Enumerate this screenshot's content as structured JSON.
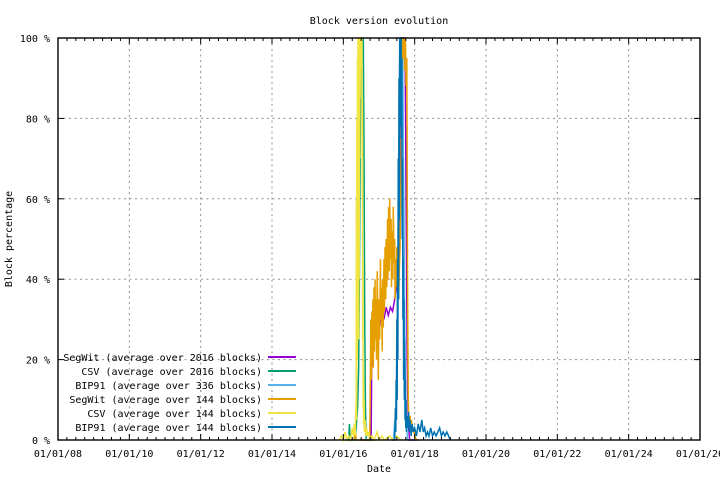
{
  "chart_data": {
    "type": "line",
    "title": "Block version evolution",
    "xlabel": "Date",
    "ylabel": "Block percentage",
    "xlim": [
      2008,
      2026
    ],
    "ylim": [
      0,
      100
    ],
    "grid": true,
    "legend_position": "bottom-left",
    "x_ticks": [
      {
        "label": "01/01/08",
        "year": 2008
      },
      {
        "label": "01/01/10",
        "year": 2010
      },
      {
        "label": "01/01/12",
        "year": 2012
      },
      {
        "label": "01/01/14",
        "year": 2014
      },
      {
        "label": "01/01/16",
        "year": 2016
      },
      {
        "label": "01/01/18",
        "year": 2018
      },
      {
        "label": "01/01/20",
        "year": 2020
      },
      {
        "label": "01/01/22",
        "year": 2022
      },
      {
        "label": "01/01/24",
        "year": 2024
      },
      {
        "label": "01/01/26",
        "year": 2026
      }
    ],
    "x_minor_tick_interval_years": 0.25,
    "y_ticks": [
      {
        "label": "0 %",
        "value": 0
      },
      {
        "label": "20 %",
        "value": 20
      },
      {
        "label": "40 %",
        "value": 40
      },
      {
        "label": "60 %",
        "value": 60
      },
      {
        "label": "80 %",
        "value": 80
      },
      {
        "label": "100 %",
        "value": 100
      }
    ],
    "grid_color": "#8f8f8f",
    "axis_color": "#000000",
    "series": [
      {
        "name": "SegWit (average over 2016 blocks)",
        "color": "#9400d3",
        "points": [
          [
            2016.5,
            0
          ],
          [
            2016.78,
            0
          ],
          [
            2016.8,
            25
          ],
          [
            2016.84,
            30
          ],
          [
            2016.9,
            27
          ],
          [
            2016.96,
            31
          ],
          [
            2017.02,
            28
          ],
          [
            2017.08,
            32
          ],
          [
            2017.14,
            30
          ],
          [
            2017.2,
            33
          ],
          [
            2017.26,
            31
          ],
          [
            2017.32,
            33
          ],
          [
            2017.38,
            32
          ],
          [
            2017.44,
            35
          ],
          [
            2017.5,
            39
          ],
          [
            2017.55,
            45
          ],
          [
            2017.6,
            65
          ],
          [
            2017.63,
            90
          ],
          [
            2017.66,
            100
          ],
          [
            2017.73,
            100
          ],
          [
            2017.76,
            60
          ],
          [
            2017.79,
            20
          ],
          [
            2017.82,
            4
          ],
          [
            2017.86,
            0
          ],
          [
            2018.05,
            0
          ]
        ]
      },
      {
        "name": "CSV (average over 2016 blocks)",
        "color": "#009e73",
        "points": [
          [
            2016.1,
            0
          ],
          [
            2016.15,
            0
          ],
          [
            2016.17,
            4
          ],
          [
            2016.19,
            0
          ],
          [
            2016.32,
            0
          ],
          [
            2016.36,
            3
          ],
          [
            2016.4,
            8
          ],
          [
            2016.43,
            18
          ],
          [
            2016.45,
            40
          ],
          [
            2016.47,
            70
          ],
          [
            2016.49,
            92
          ],
          [
            2016.51,
            100
          ],
          [
            2016.56,
            100
          ],
          [
            2016.58,
            72
          ],
          [
            2016.6,
            30
          ],
          [
            2016.62,
            8
          ],
          [
            2016.64,
            0
          ],
          [
            2016.9,
            0
          ]
        ]
      },
      {
        "name": "BIP91 (average over 336 blocks)",
        "color": "#56b4e9",
        "points": [
          [
            2017.4,
            0
          ],
          [
            2017.48,
            8
          ],
          [
            2017.52,
            35
          ],
          [
            2017.55,
            70
          ],
          [
            2017.58,
            95
          ],
          [
            2017.6,
            100
          ],
          [
            2017.66,
            100
          ],
          [
            2017.7,
            55
          ],
          [
            2017.73,
            20
          ],
          [
            2017.76,
            5
          ],
          [
            2017.8,
            0
          ],
          [
            2017.9,
            0
          ]
        ]
      },
      {
        "name": "SegWit (average over 144 blocks)",
        "color": "#e69f00",
        "points": [
          [
            2016.3,
            0
          ],
          [
            2016.33,
            3
          ],
          [
            2016.36,
            0
          ],
          [
            2016.6,
            0
          ],
          [
            2016.74,
            0
          ],
          [
            2016.76,
            18
          ],
          [
            2016.77,
            30
          ],
          [
            2016.79,
            15
          ],
          [
            2016.8,
            32
          ],
          [
            2016.81,
            20
          ],
          [
            2016.83,
            35
          ],
          [
            2016.84,
            18
          ],
          [
            2016.86,
            38
          ],
          [
            2016.87,
            22
          ],
          [
            2016.89,
            40
          ],
          [
            2016.9,
            25
          ],
          [
            2016.92,
            35
          ],
          [
            2016.93,
            20
          ],
          [
            2016.95,
            42
          ],
          [
            2016.97,
            28
          ],
          [
            2016.98,
            15
          ],
          [
            2017.0,
            35
          ],
          [
            2017.02,
            25
          ],
          [
            2017.04,
            45
          ],
          [
            2017.05,
            30
          ],
          [
            2017.07,
            38
          ],
          [
            2017.09,
            22
          ],
          [
            2017.1,
            40
          ],
          [
            2017.12,
            28
          ],
          [
            2017.14,
            45
          ],
          [
            2017.15,
            32
          ],
          [
            2017.17,
            48
          ],
          [
            2017.19,
            35
          ],
          [
            2017.2,
            50
          ],
          [
            2017.22,
            38
          ],
          [
            2017.24,
            55
          ],
          [
            2017.25,
            40
          ],
          [
            2017.27,
            58
          ],
          [
            2017.29,
            42
          ],
          [
            2017.3,
            60
          ],
          [
            2017.32,
            45
          ],
          [
            2017.34,
            55
          ],
          [
            2017.35,
            38
          ],
          [
            2017.37,
            52
          ],
          [
            2017.39,
            40
          ],
          [
            2017.4,
            58
          ],
          [
            2017.42,
            44
          ],
          [
            2017.44,
            50
          ],
          [
            2017.45,
            35
          ],
          [
            2017.47,
            45
          ],
          [
            2017.49,
            38
          ],
          [
            2017.5,
            48
          ],
          [
            2017.52,
            40
          ],
          [
            2017.54,
            45
          ],
          [
            2017.55,
            35
          ],
          [
            2017.57,
            42
          ],
          [
            2017.59,
            48
          ],
          [
            2017.6,
            55
          ],
          [
            2017.62,
            70
          ],
          [
            2017.63,
            85
          ],
          [
            2017.65,
            100
          ],
          [
            2017.68,
            95
          ],
          [
            2017.7,
            100
          ],
          [
            2017.72,
            92
          ],
          [
            2017.74,
            100
          ],
          [
            2017.76,
            88
          ],
          [
            2017.78,
            95
          ],
          [
            2017.8,
            40
          ],
          [
            2017.82,
            10
          ],
          [
            2017.84,
            3
          ],
          [
            2017.87,
            6
          ],
          [
            2017.89,
            4
          ],
          [
            2017.91,
            5
          ],
          [
            2017.94,
            2
          ],
          [
            2017.97,
            3
          ],
          [
            2018.0,
            1
          ],
          [
            2018.05,
            0
          ],
          [
            2018.12,
            0
          ]
        ]
      },
      {
        "name": "CSV (average over 144 blocks)",
        "color": "#f0e442",
        "points": [
          [
            2015.88,
            0
          ],
          [
            2015.95,
            1
          ],
          [
            2016.0,
            0
          ],
          [
            2016.05,
            2
          ],
          [
            2016.1,
            0
          ],
          [
            2016.15,
            1
          ],
          [
            2016.2,
            0
          ],
          [
            2016.25,
            3
          ],
          [
            2016.28,
            1
          ],
          [
            2016.31,
            4
          ],
          [
            2016.33,
            1
          ],
          [
            2016.36,
            10
          ],
          [
            2016.365,
            60
          ],
          [
            2016.37,
            5
          ],
          [
            2016.38,
            80
          ],
          [
            2016.39,
            20
          ],
          [
            2016.395,
            95
          ],
          [
            2016.4,
            30
          ],
          [
            2016.41,
            100
          ],
          [
            2016.42,
            55
          ],
          [
            2016.425,
            100
          ],
          [
            2016.43,
            25
          ],
          [
            2016.44,
            90
          ],
          [
            2016.445,
            40
          ],
          [
            2016.45,
            100
          ],
          [
            2016.46,
            70
          ],
          [
            2016.465,
            100
          ],
          [
            2016.47,
            85
          ],
          [
            2016.48,
            100
          ],
          [
            2016.485,
            92
          ],
          [
            2016.49,
            100
          ],
          [
            2016.5,
            96
          ],
          [
            2016.51,
            100
          ],
          [
            2016.52,
            100
          ],
          [
            2016.53,
            60
          ],
          [
            2016.535,
            85
          ],
          [
            2016.54,
            25
          ],
          [
            2016.55,
            45
          ],
          [
            2016.555,
            8
          ],
          [
            2016.56,
            20
          ],
          [
            2016.57,
            4
          ],
          [
            2016.58,
            10
          ],
          [
            2016.59,
            2
          ],
          [
            2016.61,
            5
          ],
          [
            2016.63,
            1
          ],
          [
            2016.65,
            3
          ],
          [
            2016.68,
            1
          ],
          [
            2016.71,
            2
          ],
          [
            2016.74,
            0
          ],
          [
            2016.8,
            1
          ],
          [
            2016.86,
            0
          ],
          [
            2016.95,
            2
          ],
          [
            2017.0,
            0
          ],
          [
            2017.08,
            1
          ],
          [
            2017.15,
            0
          ],
          [
            2017.3,
            1
          ],
          [
            2017.38,
            0
          ],
          [
            2017.5,
            1
          ],
          [
            2017.6,
            0
          ]
        ]
      },
      {
        "name": "BIP91 (average over 144 blocks)",
        "color": "#0072b2",
        "points": [
          [
            2017.36,
            0
          ],
          [
            2017.44,
            0
          ],
          [
            2017.46,
            8
          ],
          [
            2017.47,
            2
          ],
          [
            2017.48,
            15
          ],
          [
            2017.49,
            5
          ],
          [
            2017.5,
            30
          ],
          [
            2017.51,
            10
          ],
          [
            2017.52,
            45
          ],
          [
            2017.53,
            20
          ],
          [
            2017.54,
            70
          ],
          [
            2017.55,
            35
          ],
          [
            2017.56,
            90
          ],
          [
            2017.57,
            55
          ],
          [
            2017.58,
            100
          ],
          [
            2017.59,
            78
          ],
          [
            2017.6,
            100
          ],
          [
            2017.62,
            100
          ],
          [
            2017.63,
            75
          ],
          [
            2017.64,
            95
          ],
          [
            2017.65,
            50
          ],
          [
            2017.66,
            70
          ],
          [
            2017.67,
            30
          ],
          [
            2017.68,
            45
          ],
          [
            2017.69,
            15
          ],
          [
            2017.7,
            35
          ],
          [
            2017.71,
            10
          ],
          [
            2017.72,
            25
          ],
          [
            2017.73,
            5
          ],
          [
            2017.74,
            15
          ],
          [
            2017.75,
            3
          ],
          [
            2017.76,
            10
          ],
          [
            2017.77,
            2
          ],
          [
            2017.79,
            6
          ],
          [
            2017.81,
            3
          ],
          [
            2017.83,
            7
          ],
          [
            2017.85,
            2
          ],
          [
            2017.87,
            5
          ],
          [
            2017.9,
            1
          ],
          [
            2017.93,
            4
          ],
          [
            2017.96,
            2
          ],
          [
            2018.0,
            3
          ],
          [
            2018.05,
            1
          ],
          [
            2018.1,
            4
          ],
          [
            2018.15,
            2
          ],
          [
            2018.2,
            5
          ],
          [
            2018.24,
            2
          ],
          [
            2018.28,
            3
          ],
          [
            2018.32,
            1
          ],
          [
            2018.36,
            2
          ],
          [
            2018.4,
            1
          ],
          [
            2018.45,
            3
          ],
          [
            2018.5,
            1
          ],
          [
            2018.55,
            2
          ],
          [
            2018.6,
            1
          ],
          [
            2018.65,
            2
          ],
          [
            2018.7,
            3
          ],
          [
            2018.75,
            1
          ],
          [
            2018.8,
            2
          ],
          [
            2018.85,
            1
          ],
          [
            2018.9,
            2
          ],
          [
            2018.95,
            1
          ],
          [
            2019.0,
            0
          ]
        ]
      }
    ]
  }
}
